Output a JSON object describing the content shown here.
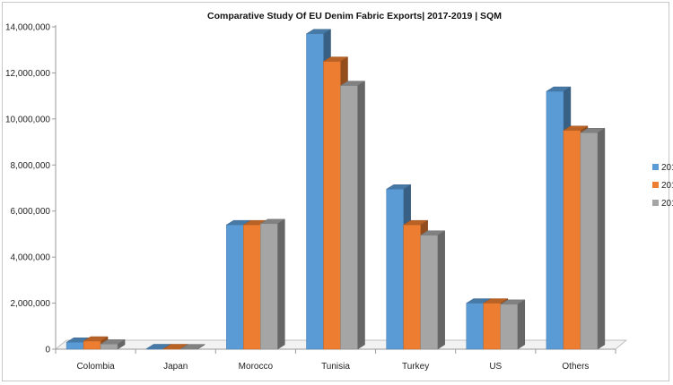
{
  "chart_data": {
    "type": "bar",
    "title": "Comparative Study Of EU Denim Fabric Exports| 2017-2019  | SQM",
    "xlabel": "",
    "ylabel": "",
    "categories": [
      "Colombia",
      "Japan",
      "Morocco",
      "Tunisia",
      "Turkey",
      "US",
      "Others"
    ],
    "series": [
      {
        "name": "201",
        "color": "#5b9bd5",
        "values": [
          300000,
          20000,
          5400000,
          13700000,
          6950000,
          2000000,
          11200000
        ]
      },
      {
        "name": "201",
        "color": "#ed7d31",
        "values": [
          350000,
          20000,
          5400000,
          12500000,
          5400000,
          2000000,
          9500000
        ]
      },
      {
        "name": "201",
        "color": "#a5a5a5",
        "values": [
          220000,
          15000,
          5450000,
          11450000,
          4950000,
          1950000,
          9400000
        ]
      }
    ],
    "ylim": [
      0,
      14000000
    ],
    "yticks": [
      "0",
      "2,000,000",
      "4,000,000",
      "6,000,000",
      "8,000,000",
      "10,000,000",
      "12,000,000",
      "14,000,000"
    ],
    "grid": false,
    "legend": "right",
    "style": "3d-clustered-column"
  }
}
